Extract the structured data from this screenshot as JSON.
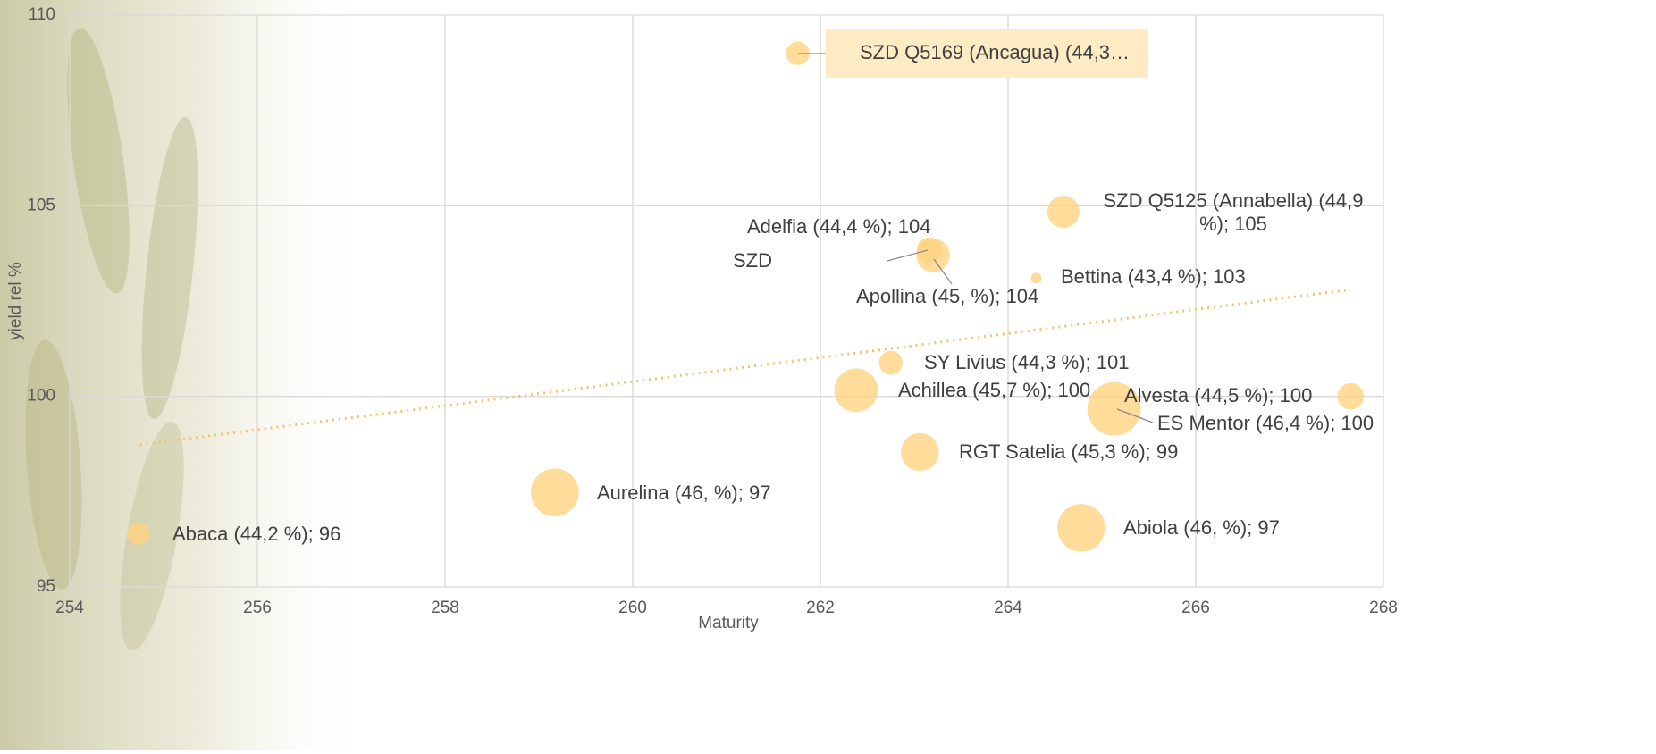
{
  "chart_data": {
    "type": "bubble",
    "xlabel": "Maturity",
    "ylabel": "yield rel %",
    "xlim": [
      254,
      268
    ],
    "xticks": [
      254,
      256,
      258,
      260,
      262,
      264,
      266,
      268
    ],
    "ylim": [
      95,
      110
    ],
    "yticks": [
      95,
      100,
      105,
      110
    ],
    "grid": true,
    "series": [
      {
        "color": "#ffd37f",
        "x": [
          261.76,
          264.59,
          263.16,
          263.2,
          264.3,
          262.75,
          262.38,
          267.65,
          265.13,
          263.06,
          259.17,
          264.78,
          254.73
        ],
        "values": [
          109,
          104.84,
          103.84,
          103.7,
          103.1,
          100.88,
          100.16,
          100.0,
          99.67,
          98.54,
          97.48,
          96.55,
          96.4
        ],
        "sizes": [
          44.3,
          44.9,
          44.4,
          45.0,
          43.4,
          44.3,
          45.7,
          44.5,
          46.4,
          45.3,
          46.0,
          46.0,
          44.2
        ],
        "labels": [
          "SZD Q5169 (Ancagua) (44,3…",
          "SZD Q5125 (Annabella) (44,9 %); 105",
          "Adelfia (44,4 %); 104",
          "Apollina (45,  %); 104",
          "Bettina  (43,4 %); 103",
          "SY Livius (44,3 %); 101",
          "Achillea (45,7 %); 100",
          "Alvesta (44,5 %); 100",
          "ES Mentor (46,4 %); 100",
          "RGT Satelia (45,3 %); 99",
          "Aurelina (46,  %); 97",
          "Abiola (46,  %); 97",
          "Abaca (44,2 %); 96"
        ]
      }
    ],
    "annotations": [
      "SZD"
    ],
    "trendline": {
      "color": "#f5c26b",
      "x": [
        254.75,
        267.65
      ],
      "values": [
        98.73,
        102.8
      ]
    }
  }
}
